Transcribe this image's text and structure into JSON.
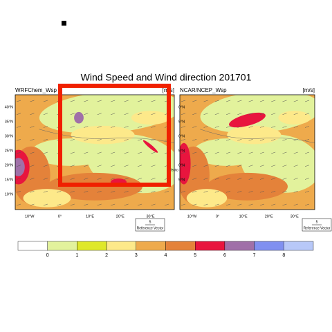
{
  "title": "Wind Speed and Wind direction 201701",
  "panels": [
    {
      "name": "WRFChem_Wsp",
      "units": "[m/s]",
      "lat_labels": [
        "40°N",
        "35°N",
        "30°N",
        "25°N",
        "20°N",
        "15°N",
        "10°N"
      ],
      "lon_labels": [
        "10°W",
        "0°",
        "10°E",
        "20°E",
        "30°E"
      ],
      "reference": {
        "value": "5",
        "label": "Reference Vector"
      }
    },
    {
      "name": "NCAR/NCEP_Wsp",
      "units": "[m/s]",
      "lat_labels": [
        "0°N",
        "5°N",
        "0°N",
        "5°N",
        "0°N",
        "5°N"
      ],
      "lon_labels": [
        "10°W",
        "0°",
        "10°E",
        "20°E",
        "30°E"
      ],
      "reference": {
        "value": "5",
        "label": "Reference Vector"
      }
    }
  ],
  "annotation": "Vecto",
  "colorbar": {
    "colors": [
      "#ffffff",
      "#e2f29c",
      "#dfe82a",
      "#fde98a",
      "#eeaa4c",
      "#e4823a",
      "#e8153e",
      "#a070a8",
      "#8090f0",
      "#b8c8f8"
    ],
    "labels": [
      "0",
      "1",
      "2",
      "3",
      "4",
      "5",
      "6",
      "7",
      "8"
    ]
  }
}
